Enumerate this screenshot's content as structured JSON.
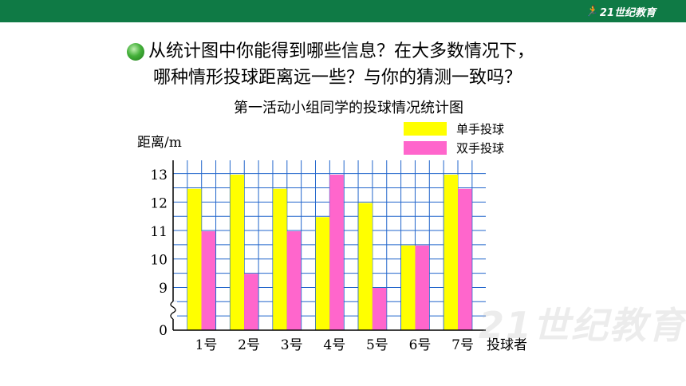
{
  "header": {
    "logo_text": "21世纪教育"
  },
  "question": {
    "line1": "从统计图中你能得到哪些信息？在大多数情况下，",
    "line2": "哪种情形投球距离远一些？与你的猜测一致吗？"
  },
  "chart_data": {
    "type": "bar",
    "title": "第一活动小组同学的投球情况统计图",
    "ylabel": "距离/m",
    "xlabel": "投球者",
    "categories": [
      "1号",
      "2号",
      "3号",
      "4号",
      "5号",
      "6号",
      "7号"
    ],
    "series": [
      {
        "name": "单手投球",
        "color": "#ffff00",
        "values": [
          12.5,
          13,
          12.5,
          11.5,
          12,
          10.5,
          13
        ]
      },
      {
        "name": "双手投球",
        "color": "#ff66cc",
        "values": [
          11,
          9.5,
          11,
          13,
          9,
          10.5,
          12.5
        ]
      }
    ],
    "yticks": [
      "0",
      "9",
      "10",
      "11",
      "12",
      "13"
    ],
    "ylim": [
      8.5,
      13.5
    ],
    "axis_break": true,
    "grid": true,
    "legend": "top-right"
  }
}
